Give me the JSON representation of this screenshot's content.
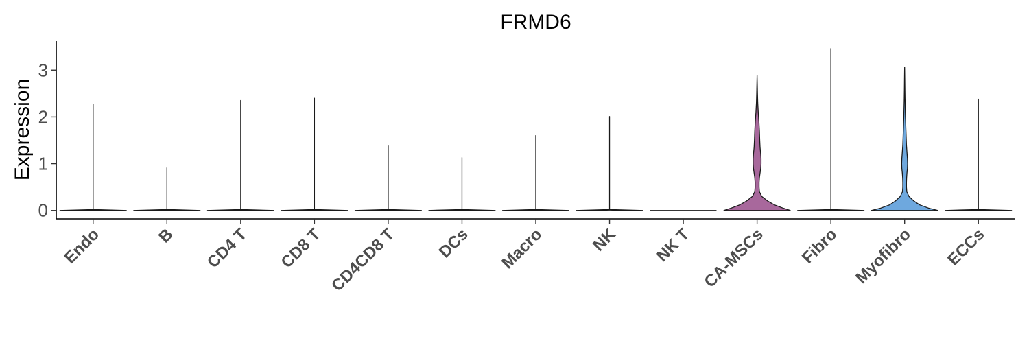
{
  "chart_data": {
    "type": "violin",
    "title": "FRMD6",
    "xlabel": "",
    "ylabel": "Expression",
    "ylim": [
      -0.18,
      3.62
    ],
    "yticks": [
      0,
      1,
      2,
      3
    ],
    "ytick_labels": [
      "0",
      "1",
      "2",
      "3"
    ],
    "grid": false,
    "categories": [
      "Endo",
      "B",
      "CD4 T",
      "CD8 T",
      "CD4CD8 T",
      "DCs",
      "Macro",
      "NK",
      "NK T",
      "CA-MSCs",
      "Fibro",
      "Myofibro",
      "ECCs"
    ],
    "colors": [
      "#ffffff",
      "#ffffff",
      "#ffffff",
      "#ffffff",
      "#ffffff",
      "#ffffff",
      "#ffffff",
      "#ffffff",
      "#ffffff",
      "#a8689c",
      "#ffffff",
      "#6ea8de",
      "#ffffff"
    ],
    "max_expression": [
      2.27,
      0.91,
      2.35,
      2.4,
      1.38,
      1.13,
      1.6,
      2.01,
      0.0,
      2.89,
      3.46,
      3.06,
      2.38
    ],
    "density_profiles": [
      [
        [
          0,
          1.0
        ],
        [
          0.02,
          0.0
        ],
        [
          2.27,
          0.0
        ]
      ],
      [
        [
          0,
          1.0
        ],
        [
          0.02,
          0.0
        ],
        [
          0.91,
          0.0
        ]
      ],
      [
        [
          0,
          1.0
        ],
        [
          0.02,
          0.0
        ],
        [
          2.35,
          0.0
        ]
      ],
      [
        [
          0,
          1.0
        ],
        [
          0.02,
          0.0
        ],
        [
          2.4,
          0.0
        ]
      ],
      [
        [
          0,
          1.0
        ],
        [
          0.02,
          0.0
        ],
        [
          1.38,
          0.0
        ]
      ],
      [
        [
          0,
          1.0
        ],
        [
          0.02,
          0.0
        ],
        [
          1.13,
          0.0
        ]
      ],
      [
        [
          0,
          1.0
        ],
        [
          0.02,
          0.0
        ],
        [
          1.6,
          0.0
        ]
      ],
      [
        [
          0,
          1.0
        ],
        [
          0.02,
          0.0
        ],
        [
          2.01,
          0.0
        ]
      ],
      [
        [
          0,
          1.0
        ]
      ],
      [
        [
          0,
          1.0
        ],
        [
          0.05,
          0.78
        ],
        [
          0.12,
          0.52
        ],
        [
          0.2,
          0.32
        ],
        [
          0.3,
          0.14
        ],
        [
          0.4,
          0.07
        ],
        [
          0.5,
          0.06
        ],
        [
          0.6,
          0.06
        ],
        [
          0.7,
          0.07
        ],
        [
          0.8,
          0.09
        ],
        [
          0.9,
          0.11
        ],
        [
          1.0,
          0.12
        ],
        [
          1.1,
          0.12
        ],
        [
          1.2,
          0.11
        ],
        [
          1.35,
          0.09
        ],
        [
          1.5,
          0.08
        ],
        [
          1.7,
          0.07
        ],
        [
          1.9,
          0.055
        ],
        [
          2.1,
          0.035
        ],
        [
          2.3,
          0.02
        ],
        [
          2.5,
          0.012
        ],
        [
          2.7,
          0.006
        ],
        [
          2.89,
          0.0
        ]
      ],
      [
        [
          0,
          1.0
        ],
        [
          0.02,
          0.0
        ],
        [
          3.46,
          0.0
        ]
      ],
      [
        [
          0,
          1.0
        ],
        [
          0.05,
          0.72
        ],
        [
          0.12,
          0.45
        ],
        [
          0.2,
          0.28
        ],
        [
          0.3,
          0.13
        ],
        [
          0.4,
          0.065
        ],
        [
          0.5,
          0.055
        ],
        [
          0.6,
          0.055
        ],
        [
          0.7,
          0.06
        ],
        [
          0.8,
          0.07
        ],
        [
          0.9,
          0.085
        ],
        [
          1.0,
          0.09
        ],
        [
          1.1,
          0.085
        ],
        [
          1.25,
          0.07
        ],
        [
          1.4,
          0.055
        ],
        [
          1.6,
          0.045
        ],
        [
          1.8,
          0.035
        ],
        [
          2.0,
          0.025
        ],
        [
          2.2,
          0.018
        ],
        [
          2.4,
          0.012
        ],
        [
          2.6,
          0.008
        ],
        [
          2.8,
          0.005
        ],
        [
          3.06,
          0.0
        ]
      ],
      [
        [
          0,
          1.0
        ],
        [
          0.02,
          0.0
        ],
        [
          2.38,
          0.0
        ]
      ]
    ]
  }
}
